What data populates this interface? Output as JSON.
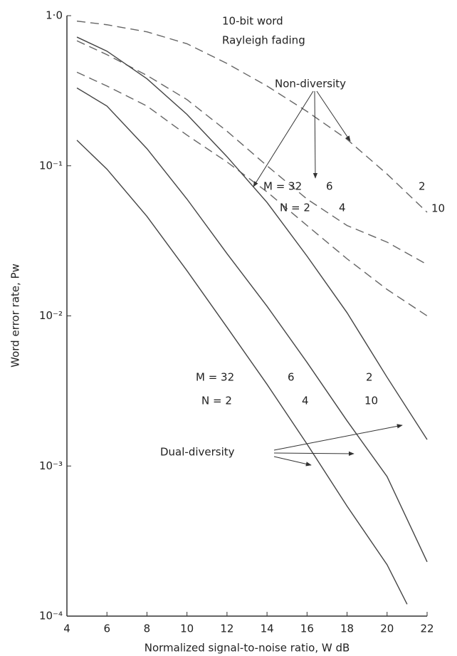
{
  "chart_data": {
    "type": "line",
    "xlabel": "Normalized signal-to-noise ratio, W dB",
    "ylabel": "Word error rate, Pw",
    "xlim": [
      4,
      22
    ],
    "ylim": [
      0.0001,
      1
    ],
    "yscale": "log",
    "xticks": [
      4,
      6,
      8,
      10,
      12,
      14,
      16,
      18,
      20,
      22
    ],
    "yticks": [
      {
        "value": 1,
        "label": "1·0"
      },
      {
        "value": 0.1,
        "label": "10⁻¹"
      },
      {
        "value": 0.01,
        "label": "10⁻²"
      },
      {
        "value": 0.001,
        "label": "10⁻³"
      },
      {
        "value": 0.0001,
        "label": "10⁻⁴"
      }
    ],
    "series": [
      {
        "color": "#666666",
        "dash": true,
        "x": [
          4.5,
          6,
          8,
          10,
          12,
          14,
          16,
          18,
          20,
          22
        ],
        "values": [
          0.92,
          0.87,
          0.78,
          0.65,
          0.48,
          0.34,
          0.23,
          0.15,
          0.088,
          0.049
        ]
      },
      {
        "color": "#666666",
        "dash": true,
        "x": [
          4.5,
          6,
          8,
          10,
          12,
          14,
          16,
          18,
          20,
          22
        ],
        "values": [
          0.68,
          0.55,
          0.4,
          0.276,
          0.17,
          0.1,
          0.06,
          0.04,
          0.031,
          0.022
        ]
      },
      {
        "color": "#666666",
        "dash": true,
        "x": [
          4.5,
          6,
          8,
          10,
          12,
          14,
          16,
          18,
          20,
          22
        ],
        "values": [
          0.42,
          0.34,
          0.25,
          0.16,
          0.106,
          0.067,
          0.04,
          0.024,
          0.015,
          0.01
        ]
      },
      {
        "color": "#444444",
        "dash": false,
        "x": [
          4.5,
          6,
          8,
          10,
          12,
          14,
          16,
          18,
          20,
          22
        ],
        "values": [
          0.72,
          0.58,
          0.38,
          0.22,
          0.115,
          0.057,
          0.025,
          0.0105,
          0.0039,
          0.0015
        ]
      },
      {
        "color": "#444444",
        "dash": false,
        "x": [
          4.5,
          6,
          8,
          10,
          12,
          14,
          16,
          18,
          20,
          22
        ],
        "values": [
          0.33,
          0.25,
          0.13,
          0.06,
          0.026,
          0.0116,
          0.0049,
          0.002,
          0.00085,
          0.00023
        ]
      },
      {
        "color": "#444444",
        "dash": false,
        "x": [
          4.5,
          6,
          8,
          10,
          12,
          14,
          16,
          18,
          20,
          21
        ],
        "values": [
          0.148,
          0.095,
          0.046,
          0.02,
          0.0084,
          0.0035,
          0.0014,
          0.00054,
          0.00022,
          0.00012
        ]
      }
    ],
    "annotations": [
      "10-bit word",
      "Rayleigh fading",
      "Non-diversity",
      "M = 32",
      "6",
      "2",
      "N = 2",
      "4",
      "10",
      "M = 32",
      "6",
      "2",
      "N = 2",
      "4",
      "10",
      "Dual-diversity"
    ]
  }
}
